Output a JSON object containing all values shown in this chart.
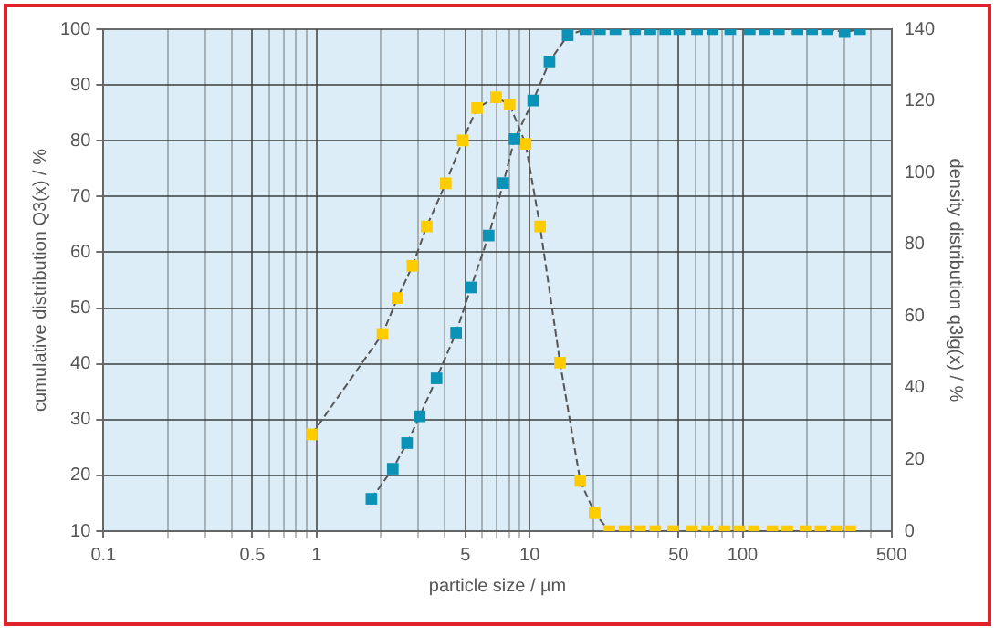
{
  "chart_data": {
    "type": "line",
    "xlabel": "particle size / µm",
    "ylabel": "cumulative distribution Q3(x) / %",
    "y2label": "density distribution q3lg(x) / %",
    "log": "x",
    "grid": true,
    "legend": false,
    "marker": "square",
    "line_style": "dashed",
    "xlim": [
      0.1,
      500
    ],
    "xticks": [
      0.1,
      {
        "value": 0.2,
        "label": null
      },
      {
        "value": 0.3,
        "label": null
      },
      {
        "value": 0.4,
        "label": null
      },
      0.5,
      {
        "value": 0.6,
        "label": null
      },
      {
        "value": 0.7,
        "label": null
      },
      {
        "value": 0.8,
        "label": null
      },
      {
        "value": 0.9,
        "label": null
      },
      1,
      {
        "value": 2,
        "label": null
      },
      {
        "value": 3,
        "label": null
      },
      {
        "value": 4,
        "label": null
      },
      5,
      {
        "value": 6,
        "label": null
      },
      {
        "value": 7,
        "label": null
      },
      {
        "value": 8,
        "label": null
      },
      {
        "value": 9,
        "label": null
      },
      10,
      {
        "value": 20,
        "label": null
      },
      {
        "value": 30,
        "label": null
      },
      {
        "value": 40,
        "label": null
      },
      50,
      {
        "value": 60,
        "label": null
      },
      {
        "value": 70,
        "label": null
      },
      {
        "value": 80,
        "label": null
      },
      {
        "value": 90,
        "label": null
      },
      100,
      {
        "value": 200,
        "label": null
      },
      {
        "value": 300,
        "label": null
      },
      {
        "value": 400,
        "label": null
      },
      500
    ],
    "ylim": [
      10,
      100
    ],
    "yticks": [
      10,
      20,
      30,
      40,
      50,
      60,
      70,
      80,
      90,
      100
    ],
    "y2lim": [
      0,
      140
    ],
    "y2ticks": [
      0,
      20,
      40,
      60,
      80,
      100,
      120,
      140
    ],
    "series": [
      {
        "color": "#0a93b6",
        "x": [
          1.81,
          2.28,
          2.66,
          3.05,
          3.66,
          4.52,
          5.31,
          6.43,
          7.53,
          8.5,
          10.4,
          12.4,
          15.1,
          18.3,
          21.4,
          25.3,
          31.3,
          36.9,
          43.3,
          50.4,
          61.1,
          72.3,
          87.5,
          108,
          127,
          148,
          181,
          212,
          249,
          301,
          356
        ],
        "values": [
          15.8,
          21.2,
          25.8,
          30.6,
          37.4,
          45.6,
          53.7,
          63,
          72.4,
          80.3,
          87.2,
          94.2,
          98.9,
          100,
          100,
          100,
          100,
          100,
          100,
          100,
          100,
          100,
          100,
          100,
          100,
          100,
          100,
          100,
          100,
          99.5,
          100
        ]
      },
      {
        "color": "#ffcc00",
        "axis": "y2",
        "x": [
          0.95,
          2.04,
          2.4,
          2.82,
          3.29,
          4.04,
          4.86,
          5.67,
          6.96,
          8.06,
          9.58,
          11.2,
          13.9,
          17.3,
          20.2,
          23.7,
          27.9,
          33,
          38.9,
          47.2,
          58,
          68.1,
          82.4,
          96.7,
          113,
          138,
          162,
          197,
          232,
          275,
          320
        ],
        "values": [
          27,
          55,
          65,
          74,
          85,
          97,
          109,
          118,
          121,
          119,
          108,
          85,
          47,
          14,
          5,
          0,
          0,
          0,
          0,
          0,
          0,
          0,
          0,
          0,
          0,
          0,
          0,
          0,
          0,
          0,
          0
        ]
      }
    ]
  }
}
